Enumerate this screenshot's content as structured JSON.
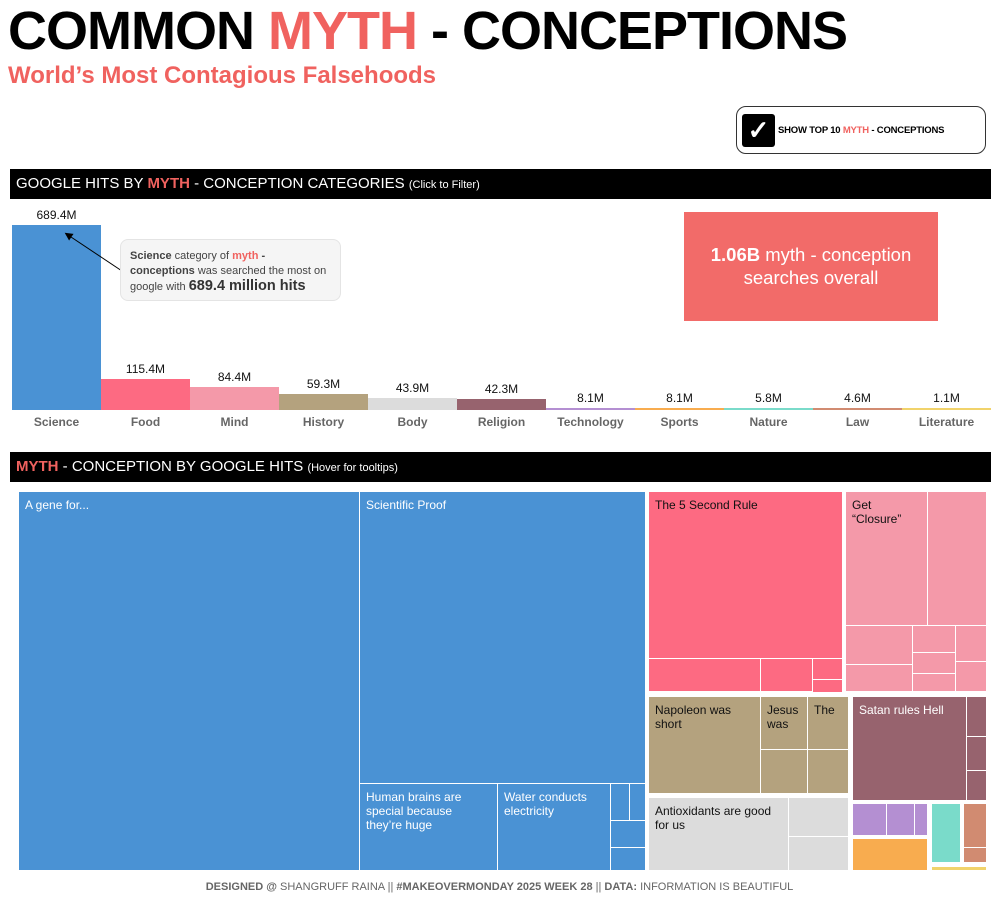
{
  "header": {
    "title_a": "COMMON ",
    "title_b": "MYTH",
    "title_c": " - CONCEPTIONS",
    "subtitle": "World’s Most Contagious Falsehoods"
  },
  "toggle": {
    "checked": true,
    "label_a": "SHOW TOP 10 ",
    "label_b": "MYTH",
    "label_c": " - CONCEPTIONS"
  },
  "bar_section": {
    "title_a": "GOOGLE HITS BY ",
    "title_b": "MYTH",
    "title_c": " - CONCEPTION CATEGORIES ",
    "hint": "(Click to Filter)"
  },
  "callout": {
    "a": "Science",
    "b": " category of ",
    "c": "myth",
    "d": " - ",
    "e": "conceptions",
    "f": " was searched the most on google with ",
    "g": "689.4 million hits"
  },
  "kpi": {
    "value": "1.06B",
    "text": " myth - conception searches overall"
  },
  "chart_data": {
    "type": "bar",
    "categories": [
      "Science",
      "Food",
      "Mind",
      "History",
      "Body",
      "Religion",
      "Technology",
      "Sports",
      "Nature",
      "Law",
      "Literature"
    ],
    "values": [
      689.4,
      115.4,
      84.4,
      59.3,
      43.9,
      42.3,
      8.1,
      8.1,
      5.8,
      4.6,
      1.1
    ],
    "labels": [
      "689.4M",
      "115.4M",
      "84.4M",
      "59.3M",
      "43.9M",
      "42.3M",
      "8.1M",
      "8.1M",
      "5.8M",
      "4.6M",
      "1.1M"
    ],
    "colors": [
      "#4a92d4",
      "#fd6a82",
      "#f499a9",
      "#b4a27e",
      "#dcdcdc",
      "#97636e",
      "#b48fd2",
      "#f8ac4f",
      "#7adbca",
      "#d18b71",
      "#f1d36b"
    ],
    "unit": "M",
    "grid": false
  },
  "treemap_section": {
    "title_a": "MYTH",
    "title_b": " - CONCEPTION BY GOOGLE HITS ",
    "hint": "(Hover for tooltips)"
  },
  "treemap": {
    "labels": {
      "gene": "A gene for...",
      "proof": "Scientific Proof",
      "brains": "Human brains are special because they’re huge",
      "water": "Water conducts electricity",
      "five": "The 5 Second Rule",
      "closure": "Get “Closure”",
      "napoleon": "Napoleon was short",
      "jesus": "Jesus was",
      "the": "The",
      "satan": "Satan rules Hell",
      "antiox": "Antioxidants are good for us"
    }
  },
  "footer": {
    "a": "DESIGNED @ ",
    "b": "SHANGRUFF RAINA || ",
    "c": "#MAKEOVERMONDAY 2025 WEEK 28",
    "d": " || ",
    "e": "DATA:",
    "f": " INFORMATION IS BEAUTIFUL"
  }
}
